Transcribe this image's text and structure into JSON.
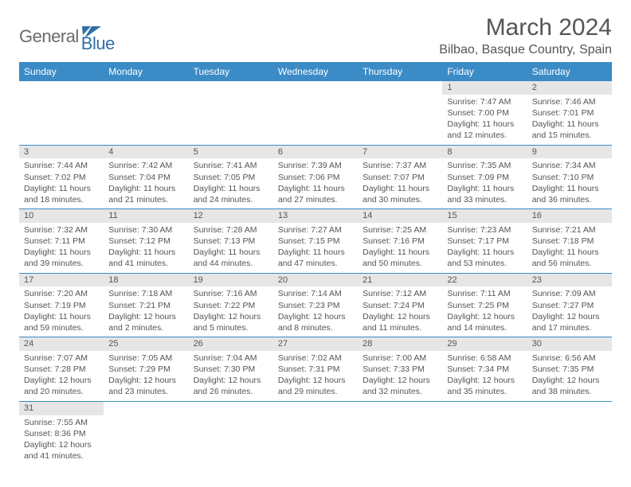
{
  "logo": {
    "text1": "General",
    "text2": "Blue"
  },
  "title": "March 2024",
  "location": "Bilbao, Basque Country, Spain",
  "colors": {
    "header_bg": "#3b8bc6",
    "header_text": "#ffffff",
    "daynum_bg": "#e6e6e6",
    "border": "#3b8bc6",
    "text": "#555555"
  },
  "day_names": [
    "Sunday",
    "Monday",
    "Tuesday",
    "Wednesday",
    "Thursday",
    "Friday",
    "Saturday"
  ],
  "weeks": [
    [
      null,
      null,
      null,
      null,
      null,
      {
        "n": "1",
        "sr": "7:47 AM",
        "ss": "7:00 PM",
        "d1": "11 hours",
        "d2": "and 12 minutes."
      },
      {
        "n": "2",
        "sr": "7:46 AM",
        "ss": "7:01 PM",
        "d1": "11 hours",
        "d2": "and 15 minutes."
      }
    ],
    [
      {
        "n": "3",
        "sr": "7:44 AM",
        "ss": "7:02 PM",
        "d1": "11 hours",
        "d2": "and 18 minutes."
      },
      {
        "n": "4",
        "sr": "7:42 AM",
        "ss": "7:04 PM",
        "d1": "11 hours",
        "d2": "and 21 minutes."
      },
      {
        "n": "5",
        "sr": "7:41 AM",
        "ss": "7:05 PM",
        "d1": "11 hours",
        "d2": "and 24 minutes."
      },
      {
        "n": "6",
        "sr": "7:39 AM",
        "ss": "7:06 PM",
        "d1": "11 hours",
        "d2": "and 27 minutes."
      },
      {
        "n": "7",
        "sr": "7:37 AM",
        "ss": "7:07 PM",
        "d1": "11 hours",
        "d2": "and 30 minutes."
      },
      {
        "n": "8",
        "sr": "7:35 AM",
        "ss": "7:09 PM",
        "d1": "11 hours",
        "d2": "and 33 minutes."
      },
      {
        "n": "9",
        "sr": "7:34 AM",
        "ss": "7:10 PM",
        "d1": "11 hours",
        "d2": "and 36 minutes."
      }
    ],
    [
      {
        "n": "10",
        "sr": "7:32 AM",
        "ss": "7:11 PM",
        "d1": "11 hours",
        "d2": "and 39 minutes."
      },
      {
        "n": "11",
        "sr": "7:30 AM",
        "ss": "7:12 PM",
        "d1": "11 hours",
        "d2": "and 41 minutes."
      },
      {
        "n": "12",
        "sr": "7:28 AM",
        "ss": "7:13 PM",
        "d1": "11 hours",
        "d2": "and 44 minutes."
      },
      {
        "n": "13",
        "sr": "7:27 AM",
        "ss": "7:15 PM",
        "d1": "11 hours",
        "d2": "and 47 minutes."
      },
      {
        "n": "14",
        "sr": "7:25 AM",
        "ss": "7:16 PM",
        "d1": "11 hours",
        "d2": "and 50 minutes."
      },
      {
        "n": "15",
        "sr": "7:23 AM",
        "ss": "7:17 PM",
        "d1": "11 hours",
        "d2": "and 53 minutes."
      },
      {
        "n": "16",
        "sr": "7:21 AM",
        "ss": "7:18 PM",
        "d1": "11 hours",
        "d2": "and 56 minutes."
      }
    ],
    [
      {
        "n": "17",
        "sr": "7:20 AM",
        "ss": "7:19 PM",
        "d1": "11 hours",
        "d2": "and 59 minutes."
      },
      {
        "n": "18",
        "sr": "7:18 AM",
        "ss": "7:21 PM",
        "d1": "12 hours",
        "d2": "and 2 minutes."
      },
      {
        "n": "19",
        "sr": "7:16 AM",
        "ss": "7:22 PM",
        "d1": "12 hours",
        "d2": "and 5 minutes."
      },
      {
        "n": "20",
        "sr": "7:14 AM",
        "ss": "7:23 PM",
        "d1": "12 hours",
        "d2": "and 8 minutes."
      },
      {
        "n": "21",
        "sr": "7:12 AM",
        "ss": "7:24 PM",
        "d1": "12 hours",
        "d2": "and 11 minutes."
      },
      {
        "n": "22",
        "sr": "7:11 AM",
        "ss": "7:25 PM",
        "d1": "12 hours",
        "d2": "and 14 minutes."
      },
      {
        "n": "23",
        "sr": "7:09 AM",
        "ss": "7:27 PM",
        "d1": "12 hours",
        "d2": "and 17 minutes."
      }
    ],
    [
      {
        "n": "24",
        "sr": "7:07 AM",
        "ss": "7:28 PM",
        "d1": "12 hours",
        "d2": "and 20 minutes."
      },
      {
        "n": "25",
        "sr": "7:05 AM",
        "ss": "7:29 PM",
        "d1": "12 hours",
        "d2": "and 23 minutes."
      },
      {
        "n": "26",
        "sr": "7:04 AM",
        "ss": "7:30 PM",
        "d1": "12 hours",
        "d2": "and 26 minutes."
      },
      {
        "n": "27",
        "sr": "7:02 AM",
        "ss": "7:31 PM",
        "d1": "12 hours",
        "d2": "and 29 minutes."
      },
      {
        "n": "28",
        "sr": "7:00 AM",
        "ss": "7:33 PM",
        "d1": "12 hours",
        "d2": "and 32 minutes."
      },
      {
        "n": "29",
        "sr": "6:58 AM",
        "ss": "7:34 PM",
        "d1": "12 hours",
        "d2": "and 35 minutes."
      },
      {
        "n": "30",
        "sr": "6:56 AM",
        "ss": "7:35 PM",
        "d1": "12 hours",
        "d2": "and 38 minutes."
      }
    ],
    [
      {
        "n": "31",
        "sr": "7:55 AM",
        "ss": "8:36 PM",
        "d1": "12 hours",
        "d2": "and 41 minutes."
      },
      null,
      null,
      null,
      null,
      null,
      null
    ]
  ],
  "labels": {
    "sunrise": "Sunrise:",
    "sunset": "Sunset:",
    "daylight": "Daylight:"
  }
}
